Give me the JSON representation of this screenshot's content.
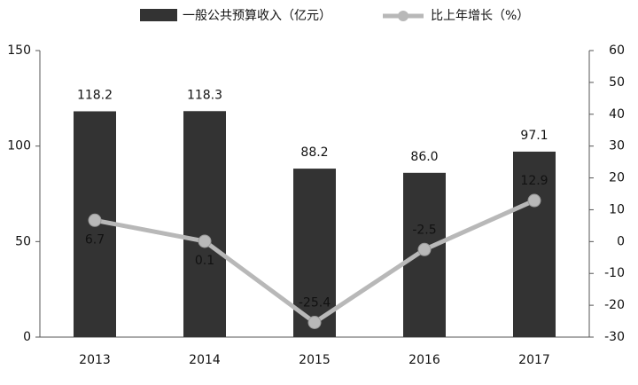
{
  "chart_data": {
    "type": "bar",
    "categories": [
      "2013",
      "2014",
      "2015",
      "2016",
      "2017"
    ],
    "series": [
      {
        "name": "一般公共预算收入（亿元）",
        "type": "bar",
        "color": "#333333",
        "values": [
          118.2,
          118.3,
          88.2,
          86.0,
          97.1
        ],
        "value_labels": [
          "118.2",
          "118.3",
          "88.2",
          "86.0",
          "97.1"
        ]
      },
      {
        "name": "比上年增长（%）",
        "type": "line",
        "axis": "y2",
        "color": "#b8b8b8",
        "values": [
          6.7,
          0.1,
          -25.4,
          -2.5,
          12.9
        ]
      }
    ],
    "ylim": [
      0,
      150
    ],
    "yticks": [
      0,
      50,
      100,
      150
    ],
    "y2lim": [
      -30,
      60
    ],
    "y2ticks": [
      -30,
      -20,
      -10,
      0,
      10,
      20,
      30,
      40,
      50,
      60
    ]
  }
}
